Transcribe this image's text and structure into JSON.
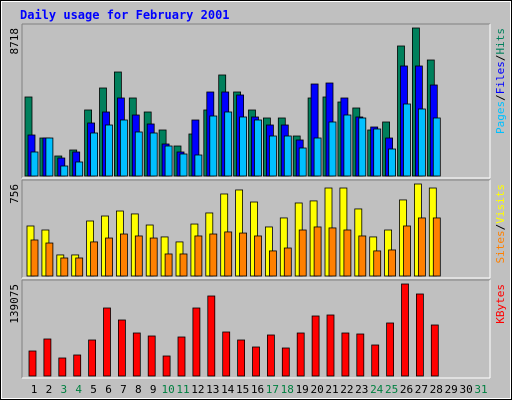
{
  "chart_data": {
    "type": "bar",
    "title": "Daily usage for February 2001",
    "categories": [
      "1",
      "2",
      "3",
      "4",
      "5",
      "6",
      "7",
      "8",
      "9",
      "10",
      "11",
      "12",
      "13",
      "14",
      "15",
      "16",
      "17",
      "18",
      "19",
      "20",
      "21",
      "22",
      "23",
      "24",
      "25",
      "26",
      "27",
      "28",
      "29",
      "30",
      "31"
    ],
    "category_colors": [
      "#000000",
      "#000000",
      "#008040",
      "#008040",
      "#000000",
      "#000000",
      "#000000",
      "#000000",
      "#000000",
      "#008040",
      "#008040",
      "#000000",
      "#000000",
      "#000000",
      "#000000",
      "#000000",
      "#008040",
      "#008040",
      "#000000",
      "#000000",
      "#000000",
      "#000000",
      "#000000",
      "#008040",
      "#008040",
      "#000000",
      "#000000",
      "#000000",
      "#000000",
      "#000000",
      "#008040"
    ],
    "separator": "/",
    "panels": [
      {
        "ylim": [
          0,
          8718
        ],
        "yticks": [
          8718
        ],
        "series": [
          {
            "name": "Hits",
            "color": "#00805c",
            "values": [
              4654,
              2238,
              1178,
              1531,
              3888,
              5184,
              6126,
              4595,
              3770,
              2710,
              1767,
              2474,
              3888,
              5950,
              4948,
              3888,
              3417,
              3417,
              2356,
              4595,
              4654,
              4359,
              4006,
              2710,
              3181,
              7658,
              8718,
              6833,
              null,
              null,
              null
            ]
          },
          {
            "name": "Files",
            "color": "#0000ff",
            "values": [
              2415,
              2238,
              1060,
              1414,
              3122,
              3770,
              4595,
              3593,
              3063,
              1885,
              1414,
              3299,
              4948,
              4948,
              4771,
              3476,
              3004,
              3004,
              2121,
              5419,
              5478,
              4595,
              3476,
              2886,
              2238,
              6480,
              6480,
              5360,
              null,
              null,
              null
            ]
          },
          {
            "name": "Pages",
            "color": "#00c0ff",
            "values": [
              1414,
              2238,
              589,
              825,
              2533,
              3004,
              3299,
              2592,
              2533,
              1767,
              1296,
              1237,
              3534,
              3770,
              3476,
              3299,
              2356,
              2356,
              1649,
              2238,
              3181,
              3593,
              3417,
              2769,
              1590,
              4241,
              3947,
              3417,
              null,
              null,
              null
            ]
          }
        ]
      },
      {
        "ylim": [
          0,
          756
        ],
        "yticks": [
          756
        ],
        "series": [
          {
            "name": "Visits",
            "color": "#ffff00",
            "values": [
              411,
              378,
              173,
              173,
              452,
              493,
              534,
              510,
              419,
              321,
              280,
              427,
              518,
              674,
              707,
              608,
              403,
              477,
              600,
              617,
              723,
              723,
              551,
              321,
              378,
              625,
              756,
              723,
              null,
              null,
              null
            ]
          },
          {
            "name": "Sites",
            "color": "#ff8000",
            "values": [
              296,
              271,
              148,
              148,
              280,
              312,
              345,
              329,
              312,
              181,
              181,
              329,
              345,
              362,
              353,
              329,
              206,
              230,
              378,
              403,
              395,
              378,
              329,
              206,
              214,
              411,
              477,
              477,
              null,
              null,
              null
            ]
          }
        ]
      },
      {
        "ylim": [
          0,
          139075
        ],
        "yticks": [
          139075
        ],
        "series": [
          {
            "name": "KBytes",
            "color": "#ff0000",
            "values": [
              37793,
              55933,
              27211,
              31746,
              54421,
              102796,
              84655,
              65003,
              60468,
              30234,
              58956,
              102796,
              120935,
              66515,
              54421,
              43839,
              61980,
              42328,
              65003,
              90702,
              92214,
              65003,
              63491,
              46863,
              80120,
              139075,
              123960,
              77097,
              null,
              null,
              null
            ]
          }
        ]
      }
    ]
  }
}
